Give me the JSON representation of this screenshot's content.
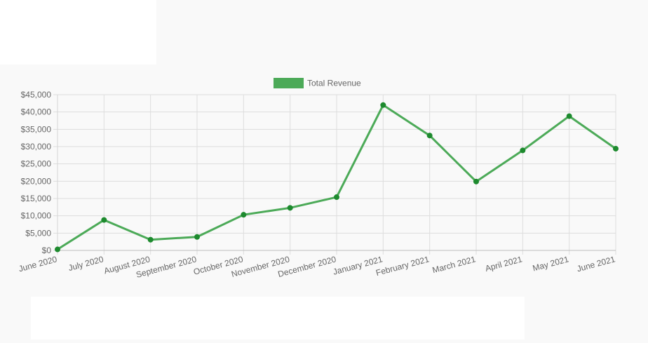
{
  "colors": {
    "line": "#4caa58",
    "point": "#1d8a2e",
    "legend_box": "#4caa58",
    "grid": "#dddddd",
    "tick_text": "#666666",
    "background": "#f9f9f9"
  },
  "chart_data": {
    "type": "line",
    "categories": [
      "June 2020",
      "July 2020",
      "August 2020",
      "September 2020",
      "October 2020",
      "November 2020",
      "December 2020",
      "January 2021",
      "February 2021",
      "March 2021",
      "April 2021",
      "May 2021",
      "June 2021"
    ],
    "series": [
      {
        "name": "Total Revenue",
        "values": [
          300,
          8800,
          3100,
          3900,
          10300,
          12300,
          15400,
          42000,
          33200,
          19900,
          28900,
          38800,
          29400
        ]
      }
    ],
    "ylim": [
      0,
      45000
    ],
    "yticks": [
      {
        "value": 0,
        "label": "$0"
      },
      {
        "value": 5000,
        "label": "$5,000"
      },
      {
        "value": 10000,
        "label": "$10,000"
      },
      {
        "value": 15000,
        "label": "$15,000"
      },
      {
        "value": 20000,
        "label": "$20,000"
      },
      {
        "value": 25000,
        "label": "$25,000"
      },
      {
        "value": 30000,
        "label": "$30,000"
      },
      {
        "value": 35000,
        "label": "$35,000"
      },
      {
        "value": 40000,
        "label": "$40,000"
      },
      {
        "value": 45000,
        "label": "$45,000"
      }
    ],
    "legend_position": "top-center",
    "grid": true
  }
}
